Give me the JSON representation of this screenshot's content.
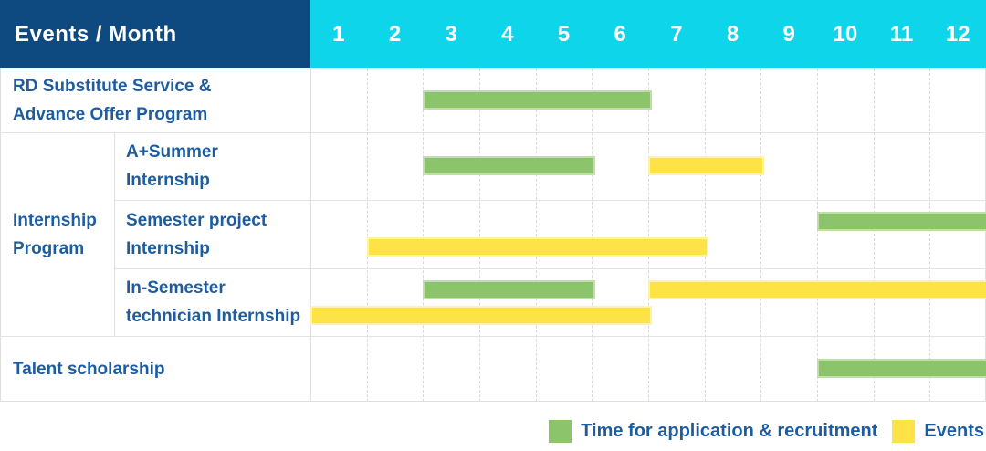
{
  "colors": {
    "navy": "#0e4a80",
    "cyan": "#0fd5eb",
    "green": "#8bc46b",
    "green_edge": "#bedfa6",
    "yellow": "#fde345",
    "yellow_edge": "#fef3a6",
    "label_blue": "#1d5c9f",
    "grid_dash": "#d9d9d9",
    "grid_solid": "#e0e0e0",
    "row_line": "#e4e4e4",
    "outer_border": "#dedede"
  },
  "header": {
    "title": "Events / Month",
    "months": [
      "1",
      "2",
      "3",
      "4",
      "5",
      "6",
      "7",
      "8",
      "9",
      "10",
      "11",
      "12"
    ]
  },
  "legend": [
    {
      "color_key": "green",
      "label": "Time for application & recruitment"
    },
    {
      "color_key": "yellow",
      "label": "Events"
    }
  ],
  "chart_data": {
    "type": "gantt",
    "title": "Events / Month",
    "x_unit": "month",
    "x_range": [
      1,
      12
    ],
    "legend": {
      "green": "Time for application & recruitment",
      "yellow": "Events"
    },
    "rows": [
      {
        "group": null,
        "label": "RD Substitute Service &\nAdvance Offer Program",
        "bars": [
          {
            "type": "green",
            "start": 3,
            "end": 6,
            "lane": "single"
          }
        ]
      },
      {
        "group": "Internship\nProgram",
        "label": "A+Summer\nInternship",
        "bars": [
          {
            "type": "green",
            "start": 3,
            "end": 5,
            "lane": "single"
          },
          {
            "type": "yellow",
            "start": 7,
            "end": 8,
            "lane": "single"
          }
        ]
      },
      {
        "group": "Internship\nProgram",
        "label": "Semester project\nInternship",
        "bars": [
          {
            "type": "green",
            "start": 10,
            "end": 12,
            "lane": "top"
          },
          {
            "type": "yellow",
            "start": 2,
            "end": 7,
            "lane": "bottom"
          }
        ]
      },
      {
        "group": "Internship\nProgram",
        "label": "In-Semester\ntechnician Internship",
        "bars": [
          {
            "type": "green",
            "start": 3,
            "end": 5,
            "lane": "top"
          },
          {
            "type": "yellow",
            "start": 7,
            "end": 12,
            "lane": "top"
          },
          {
            "type": "yellow",
            "start": 1,
            "end": 6,
            "lane": "bottom"
          }
        ]
      },
      {
        "group": null,
        "label": "Talent scholarship",
        "bars": [
          {
            "type": "green",
            "start": 10,
            "end": 12,
            "lane": "single"
          }
        ]
      }
    ]
  }
}
